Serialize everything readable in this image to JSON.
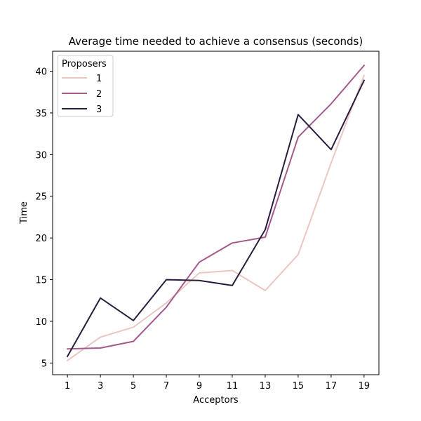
{
  "chart_data": {
    "type": "line",
    "title": "Average time needed to achieve a consensus (seconds)",
    "xlabel": "Acceptors",
    "ylabel": "Time",
    "x": [
      1,
      3,
      5,
      7,
      9,
      11,
      13,
      15,
      17,
      19
    ],
    "xticks": [
      "1",
      "3",
      "5",
      "7",
      "9",
      "11",
      "13",
      "15",
      "17",
      "19"
    ],
    "yticks": [
      "5",
      "10",
      "15",
      "20",
      "25",
      "30",
      "35",
      "40"
    ],
    "xlim": [
      0.1,
      19.9
    ],
    "ylim": [
      3.6,
      42.4
    ],
    "grid": false,
    "legend": {
      "title": "Proposers",
      "placement": "top-left"
    },
    "series": [
      {
        "name": "1",
        "color": "#eac7c1",
        "values": [
          5.3,
          8.1,
          9.3,
          12.2,
          15.8,
          16.1,
          13.7,
          18.0,
          29.0,
          39.5
        ]
      },
      {
        "name": "2",
        "color": "#a55a8b",
        "values": [
          6.7,
          6.8,
          7.6,
          11.7,
          17.1,
          19.4,
          20.1,
          32.1,
          36.1,
          40.7
        ]
      },
      {
        "name": "3",
        "color": "#2b1d3d",
        "values": [
          5.8,
          12.8,
          10.1,
          15.0,
          14.9,
          14.3,
          21.0,
          34.8,
          30.6,
          38.9
        ]
      }
    ]
  }
}
